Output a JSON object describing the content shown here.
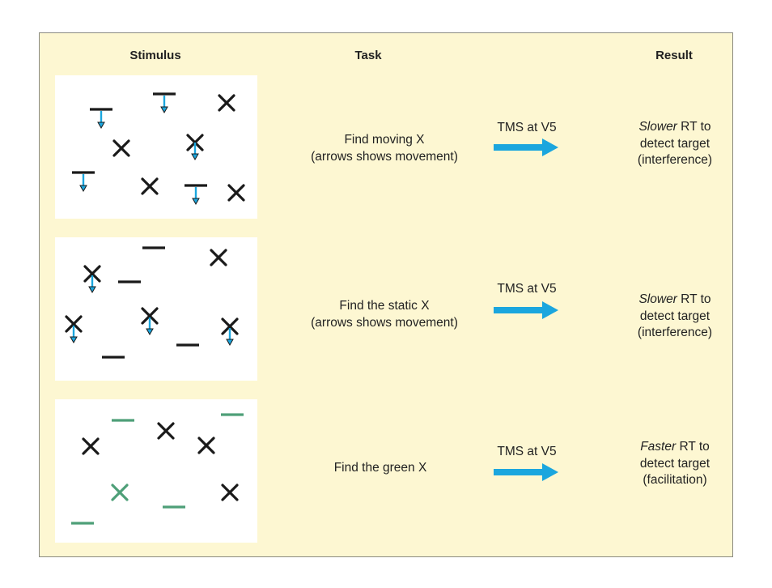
{
  "headers": {
    "stimulus": "Stimulus",
    "task": "Task",
    "result": "Result"
  },
  "colors": {
    "background": "#fdf7d2",
    "arrow": "#1ba6de",
    "green": "#4e9f78",
    "black": "#1a1a1a"
  },
  "rows": [
    {
      "task": [
        "Find moving X",
        "(arrows shows movement)"
      ],
      "tms": "TMS at V5",
      "result": {
        "emphasis": "Slower",
        "rest": " RT to",
        "line2": "detect target",
        "line3": "(interference)"
      }
    },
    {
      "task": [
        "Find the static X",
        "(arrows shows movement)"
      ],
      "tms": "TMS at V5",
      "result": {
        "emphasis": "Slower",
        "rest": " RT to",
        "line2": "detect target",
        "line3": "(interference)"
      }
    },
    {
      "task": [
        "Find the green X"
      ],
      "tms": "TMS at V5",
      "result": {
        "emphasis": "Faster",
        "rest": " RT to",
        "line2": "detect target",
        "line3": "(facilitation)"
      }
    }
  ]
}
